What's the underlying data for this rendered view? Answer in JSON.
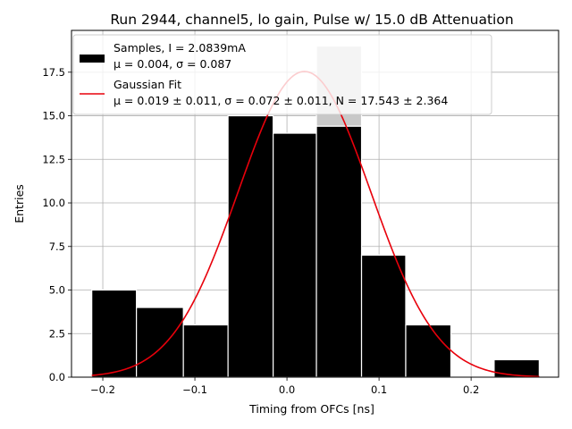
{
  "chart_data": {
    "type": "bar",
    "title": "Run 2944, channel5, lo gain, Pulse w/ 15.0 dB Attenuation",
    "xlabel": "Timing from OFCs [ns]",
    "ylabel": "Entries",
    "xlim": [
      -0.234,
      0.295
    ],
    "ylim": [
      0,
      19.9
    ],
    "grid": true,
    "legend_position": "upper-left",
    "x_ticks": [
      {
        "value": -0.2,
        "label": "−0.2"
      },
      {
        "value": -0.1,
        "label": "−0.1"
      },
      {
        "value": 0.0,
        "label": "0.0"
      },
      {
        "value": 0.1,
        "label": "0.1"
      },
      {
        "value": 0.2,
        "label": "0.2"
      }
    ],
    "y_ticks": [
      {
        "value": 0.0,
        "label": "0.0"
      },
      {
        "value": 2.5,
        "label": "2.5"
      },
      {
        "value": 5.0,
        "label": "5.0"
      },
      {
        "value": 7.5,
        "label": "7.5"
      },
      {
        "value": 10.0,
        "label": "10.0"
      },
      {
        "value": 12.5,
        "label": "12.5"
      },
      {
        "value": 15.0,
        "label": "15.0"
      },
      {
        "value": 17.5,
        "label": "17.5"
      }
    ],
    "histogram": {
      "name": "Samples, I = 2.0839mA",
      "stats": "μ = 0.004, σ = 0.087",
      "color": "#000000",
      "bin_edges": [
        -0.212,
        -0.1635,
        -0.1125,
        -0.064,
        -0.015,
        0.032,
        0.081,
        0.129,
        0.178,
        0.225,
        0.274
      ],
      "counts": [
        5,
        4,
        3,
        15,
        14,
        19,
        7,
        3,
        0,
        1
      ]
    },
    "fit": {
      "name": "Gaussian Fit",
      "stats": "μ = 0.019 ± 0.011, σ = 0.072 ± 0.011, N = 17.543 ± 2.364",
      "color": "#e8000b",
      "mu": 0.019,
      "sigma": 0.072,
      "amplitude": 17.543,
      "x_range": [
        -0.212,
        0.274
      ]
    },
    "highlight_bin": {
      "index": 5,
      "color": "#c8c8c8"
    }
  }
}
